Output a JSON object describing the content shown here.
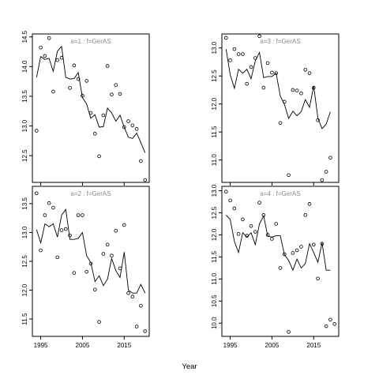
{
  "figure": {
    "xlabel": "Year"
  },
  "chart_data": [
    {
      "type": "line",
      "title": "a=1  :  f=GerAS",
      "xlim": [
        1993,
        2021
      ],
      "ylim": [
        12.05,
        14.55
      ],
      "y_ticks": [
        "12.5",
        "13.0",
        "13.5",
        "14.0",
        "14.5"
      ],
      "x_ticks": [],
      "series": [
        {
          "x": [
            1994,
            1995,
            1996,
            1997,
            1998,
            1999,
            2000,
            2001,
            2002,
            2003,
            2004,
            2005,
            2006,
            2007,
            2008,
            2009,
            2010,
            2011,
            2012,
            2013,
            2014,
            2015,
            2016,
            2017,
            2018,
            2019,
            2020
          ],
          "y": [
            13.82,
            14.17,
            14.12,
            14.14,
            13.92,
            14.26,
            14.34,
            13.82,
            13.79,
            13.8,
            13.9,
            13.48,
            13.37,
            13.13,
            13.19,
            12.98,
            12.99,
            13.3,
            13.22,
            13.08,
            13.18,
            12.98,
            12.81,
            12.79,
            12.88,
            12.72,
            12.55
          ]
        },
        {
          "points_x": [
            1994,
            1995,
            1996,
            1997,
            1998,
            1999,
            2000,
            2001,
            2002,
            2003,
            2004,
            2005,
            2006,
            2007,
            2008,
            2009,
            2010,
            2011,
            2012,
            2013,
            2014,
            2015,
            2016,
            2017,
            2018,
            2019,
            2020
          ],
          "points_y": [
            12.92,
            14.32,
            14.18,
            14.48,
            13.58,
            14.11,
            14.15,
            14.82,
            13.64,
            14.02,
            13.79,
            13.51,
            13.76,
            13.22,
            12.87,
            12.49,
            13.18,
            14.01,
            13.53,
            13.69,
            13.54,
            12.98,
            13.08,
            13.01,
            12.95,
            12.41,
            12.09
          ]
        }
      ]
    },
    {
      "type": "line",
      "title": "a=3  :  f=GerAS",
      "xlim": [
        1993,
        2021
      ],
      "ylim": [
        10.6,
        13.25
      ],
      "y_ticks": [
        "11.0",
        "11.5",
        "12.0",
        "12.5",
        "13.0"
      ],
      "x_ticks": [],
      "series": [
        {
          "x": [
            1994,
            1995,
            1996,
            1997,
            1998,
            1999,
            2000,
            2001,
            2002,
            2003,
            2004,
            2005,
            2006,
            2007,
            2008,
            2009,
            2010,
            2011,
            2012,
            2013,
            2014,
            2015,
            2016,
            2017,
            2018,
            2019
          ],
          "y": [
            12.98,
            12.52,
            12.28,
            12.62,
            12.55,
            12.62,
            12.45,
            12.77,
            12.92,
            12.47,
            12.49,
            12.49,
            12.55,
            12.14,
            11.99,
            11.74,
            11.87,
            11.79,
            11.86,
            12.08,
            11.94,
            12.32,
            11.75,
            11.56,
            11.64,
            11.86
          ]
        },
        {
          "points_x": [
            1994,
            1995,
            1996,
            1997,
            1998,
            1999,
            2000,
            2001,
            2002,
            2003,
            2004,
            2005,
            2006,
            2007,
            2008,
            2009,
            2010,
            2011,
            2012,
            2013,
            2014,
            2015,
            2016,
            2017,
            2018,
            2019
          ],
          "points_y": [
            13.18,
            12.78,
            12.98,
            12.89,
            12.89,
            12.36,
            12.66,
            12.82,
            13.21,
            12.29,
            12.73,
            12.56,
            12.55,
            11.66,
            12.04,
            10.73,
            12.25,
            12.24,
            12.19,
            12.61,
            12.55,
            12.29,
            11.71,
            10.64,
            10.79,
            11.04
          ]
        }
      ]
    },
    {
      "type": "line",
      "title": "a=2  :  f=GerAS",
      "xlim": [
        1993,
        2021
      ],
      "ylim": [
        11.2,
        13.8
      ],
      "y_ticks": [
        "11.5",
        "12.0",
        "12.5",
        "13.0",
        "13.5"
      ],
      "x_ticks": [
        "1995",
        "2005",
        "2015"
      ],
      "series": [
        {
          "x": [
            1994,
            1995,
            1996,
            1997,
            1998,
            1999,
            2000,
            2001,
            2002,
            2003,
            2004,
            2005,
            2006,
            2007,
            2008,
            2009,
            2010,
            2011,
            2012,
            2013,
            2014,
            2015,
            2016,
            2017,
            2018,
            2019,
            2020
          ],
          "y": [
            13.05,
            12.82,
            13.15,
            13.1,
            13.15,
            12.92,
            13.3,
            13.4,
            12.88,
            12.88,
            12.9,
            13.0,
            12.6,
            12.48,
            12.15,
            12.25,
            12.08,
            12.19,
            12.55,
            12.34,
            12.22,
            12.66,
            12.0,
            11.95,
            11.95,
            12.1,
            11.95
          ]
        },
        {
          "points_x": [
            1994,
            1995,
            1996,
            1997,
            1998,
            1999,
            2000,
            2001,
            2002,
            2003,
            2004,
            2005,
            2006,
            2007,
            2008,
            2009,
            2010,
            2011,
            2012,
            2013,
            2014,
            2015,
            2016,
            2017,
            2018,
            2019,
            2020
          ],
          "points_y": [
            13.68,
            12.69,
            13.3,
            13.51,
            13.43,
            12.57,
            13.04,
            13.06,
            12.95,
            12.3,
            13.3,
            13.3,
            12.32,
            12.46,
            12.01,
            11.45,
            12.63,
            12.79,
            12.6,
            13.03,
            12.38,
            13.13,
            11.95,
            11.89,
            11.37,
            11.73,
            11.29
          ]
        }
      ]
    },
    {
      "type": "line",
      "title": "a=4  :  f=GerAS",
      "xlim": [
        1993,
        2021
      ],
      "ylim": [
        9.7,
        13.1
      ],
      "y_ticks": [
        "10.0",
        "10.5",
        "11.0",
        "11.5",
        "12.0",
        "12.5",
        "13.0"
      ],
      "x_ticks": [
        "1995",
        "2005",
        "2015"
      ],
      "series": [
        {
          "x": [
            1994,
            1995,
            1996,
            1997,
            1998,
            1999,
            2000,
            2001,
            2002,
            2003,
            2004,
            2005,
            2006,
            2007,
            2008,
            2009,
            2010,
            2011,
            2012,
            2013,
            2014,
            2015,
            2016,
            2017,
            2018,
            2019
          ],
          "y": [
            12.45,
            12.35,
            11.85,
            11.6,
            12.05,
            11.95,
            12.05,
            11.78,
            12.25,
            12.43,
            11.97,
            11.95,
            11.98,
            11.98,
            11.55,
            11.42,
            11.2,
            11.45,
            11.25,
            11.35,
            11.8,
            11.6,
            11.38,
            11.82,
            11.2,
            11.2
          ]
        },
        {
          "points_x": [
            1994,
            1995,
            1996,
            1997,
            1998,
            1999,
            2000,
            2001,
            2002,
            2003,
            2004,
            2005,
            2006,
            2007,
            2008,
            2009,
            2010,
            2011,
            2012,
            2013,
            2014,
            2015,
            2016,
            2017,
            2018,
            2019,
            2020
          ],
          "points_y": [
            12.98,
            12.78,
            12.6,
            12.02,
            12.35,
            11.98,
            12.2,
            12.07,
            12.73,
            12.45,
            12.0,
            11.91,
            12.25,
            11.25,
            11.56,
            9.8,
            11.59,
            11.65,
            11.73,
            12.45,
            12.7,
            11.78,
            11.01,
            11.8,
            9.93,
            10.08,
            9.98
          ]
        }
      ]
    }
  ]
}
